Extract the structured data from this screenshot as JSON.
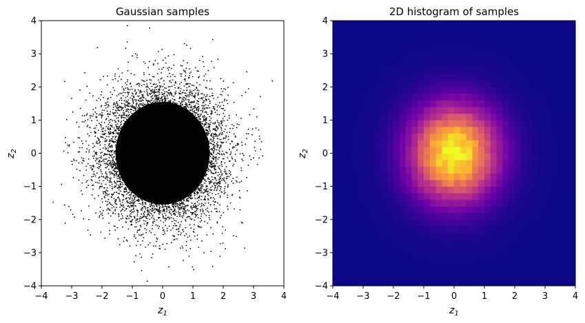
{
  "chart_data": [
    {
      "type": "scatter",
      "title": "Gaussian samples",
      "xlabel": "z",
      "xlabel_sub": "1",
      "ylabel": "z",
      "ylabel_sub": "2",
      "xlim": [
        -4,
        4
      ],
      "ylim": [
        -4,
        4
      ],
      "xticks": [
        -4,
        -3,
        -2,
        -1,
        0,
        1,
        2,
        3,
        4
      ],
      "yticks": [
        -4,
        -3,
        -2,
        -1,
        0,
        1,
        2,
        3,
        4
      ],
      "tick_labels": [
        "−4",
        "−3",
        "−2",
        "−1",
        "0",
        "1",
        "2",
        "3",
        "4"
      ],
      "distribution": {
        "kind": "standard normal 2D",
        "mean": [
          0,
          0
        ],
        "std": [
          1,
          1
        ]
      },
      "marker_color": "#000000",
      "grid": false
    },
    {
      "type": "heatmap",
      "title": "2D histogram of samples",
      "xlabel": "z",
      "xlabel_sub": "1",
      "ylabel": "z",
      "ylabel_sub": "2",
      "xlim": [
        -4,
        4
      ],
      "ylim": [
        -4,
        4
      ],
      "xticks": [
        -4,
        -3,
        -2,
        -1,
        0,
        1,
        2,
        3,
        4
      ],
      "yticks": [
        -4,
        -3,
        -2,
        -1,
        0,
        1,
        2,
        3,
        4
      ],
      "tick_labels": [
        "−4",
        "−3",
        "−2",
        "−1",
        "0",
        "1",
        "2",
        "3",
        "4"
      ],
      "bins": 40,
      "bin_range": [
        -4,
        4
      ],
      "colormap": "plasma",
      "colormap_stops": [
        "#0d0887",
        "#6a00a8",
        "#b12a90",
        "#e16462",
        "#fca636",
        "#f0f921"
      ],
      "distribution": {
        "kind": "standard normal 2D",
        "mean": [
          0,
          0
        ],
        "std": [
          1,
          1
        ]
      },
      "grid": false
    }
  ]
}
